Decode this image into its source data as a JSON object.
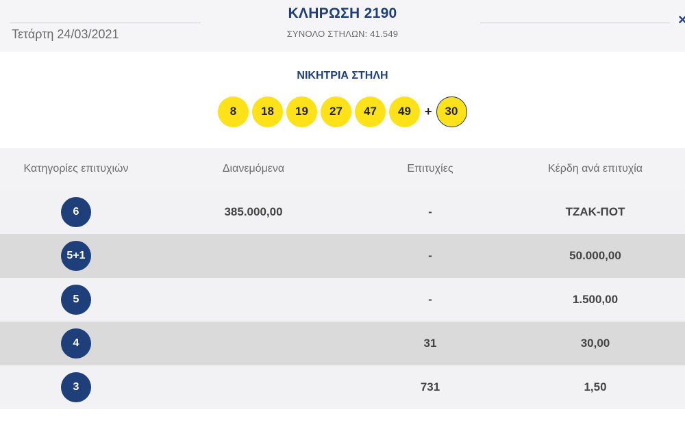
{
  "header": {
    "date": "Τετάρτη 24/03/2021",
    "draw_title": "ΚΛΗΡΩΣΗ 2190",
    "total_columns": "ΣΥΝΟΛΟ ΣΤΗΛΩΝ: 41.549",
    "close_icon": "×"
  },
  "winning": {
    "title": "ΝΙΚΗΤΡΙΑ ΣΤΗΛΗ",
    "numbers": [
      "8",
      "18",
      "19",
      "27",
      "47",
      "49"
    ],
    "plus": "+",
    "bonus": "30"
  },
  "table": {
    "headers": [
      "Κατηγορίες επιτυχιών",
      "Διανεμόμενα",
      "Επιτυχίες",
      "Κέρδη ανά επιτυχία"
    ],
    "rows": [
      {
        "category": "6",
        "distributed": "385.000,00",
        "winners": "-",
        "prize": "ΤΖΑΚ-ΠΟΤ"
      },
      {
        "category": "5+1",
        "distributed": "",
        "winners": "-",
        "prize": "50.000,00"
      },
      {
        "category": "5",
        "distributed": "",
        "winners": "-",
        "prize": "1.500,00"
      },
      {
        "category": "4",
        "distributed": "",
        "winners": "31",
        "prize": "30,00"
      },
      {
        "category": "3",
        "distributed": "",
        "winners": "731",
        "prize": "1,50"
      }
    ]
  },
  "colors": {
    "accent": "#1f3f7a",
    "ball": "#fde21a"
  }
}
